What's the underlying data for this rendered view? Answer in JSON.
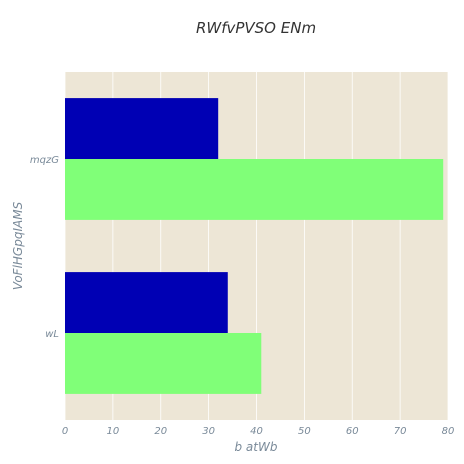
{
  "chart_data": {
    "type": "bar",
    "orientation": "horizontal",
    "title": "RWfvPVSO  ENm",
    "xlabel": "b atWb",
    "ylabel": "VoFlHGpqIAMS",
    "categories": [
      "mqzG",
      "wL"
    ],
    "series": [
      {
        "values": [
          32,
          34
        ],
        "color": "#0000b4"
      },
      {
        "values": [
          79,
          41
        ],
        "color": "#80ff78"
      }
    ],
    "xlim": [
      0,
      80
    ],
    "xticks": [
      0,
      10,
      20,
      30,
      40,
      50,
      60,
      70,
      80
    ],
    "grid": true,
    "legend": "none",
    "plot_background": "#ede6d6",
    "grid_color": "#ffffff"
  }
}
